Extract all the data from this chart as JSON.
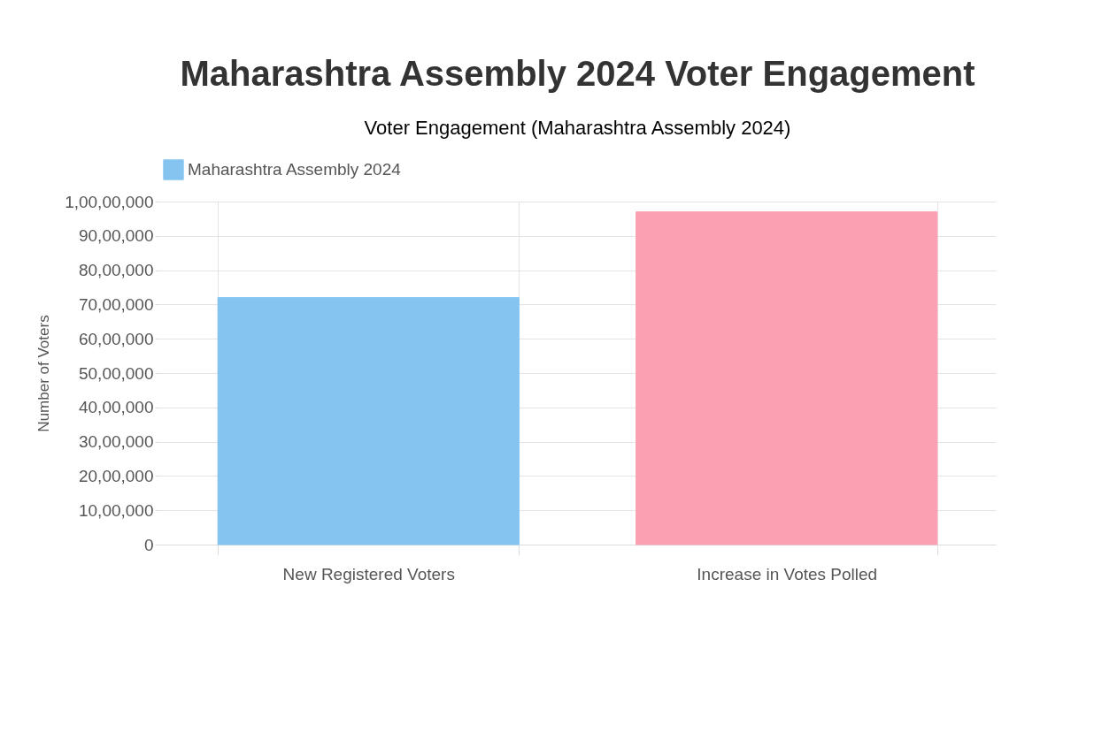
{
  "chart_data": {
    "type": "bar",
    "title": "Maharashtra Assembly 2024 Voter Engagement",
    "subtitle": "Voter Engagement (Maharashtra Assembly 2024)",
    "ylabel": "Number of Voters",
    "categories": [
      "New Registered Voters",
      "Increase in Votes Polled"
    ],
    "series": [
      {
        "name": "Maharashtra Assembly 2024",
        "color": "#85c4f0",
        "colors": [
          "#85c4f0",
          "#fba0b3"
        ],
        "values": [
          7200000,
          9700000
        ]
      }
    ],
    "ylim": [
      0,
      10000000
    ],
    "yticks": [
      0,
      {
        "value": 1000000,
        "label": "10,00,000"
      },
      {
        "value": 2000000,
        "label": "20,00,000"
      },
      {
        "value": 3000000,
        "label": "30,00,000"
      },
      {
        "value": 4000000,
        "label": "40,00,000"
      },
      {
        "value": 5000000,
        "label": "50,00,000"
      },
      {
        "value": 6000000,
        "label": "60,00,000"
      },
      {
        "value": 7000000,
        "label": "70,00,000"
      },
      {
        "value": 8000000,
        "label": "80,00,000"
      },
      {
        "value": 9000000,
        "label": "90,00,000"
      },
      {
        "value": 10000000,
        "label": "1,00,00,000"
      }
    ],
    "grid": true,
    "legend": "top"
  }
}
